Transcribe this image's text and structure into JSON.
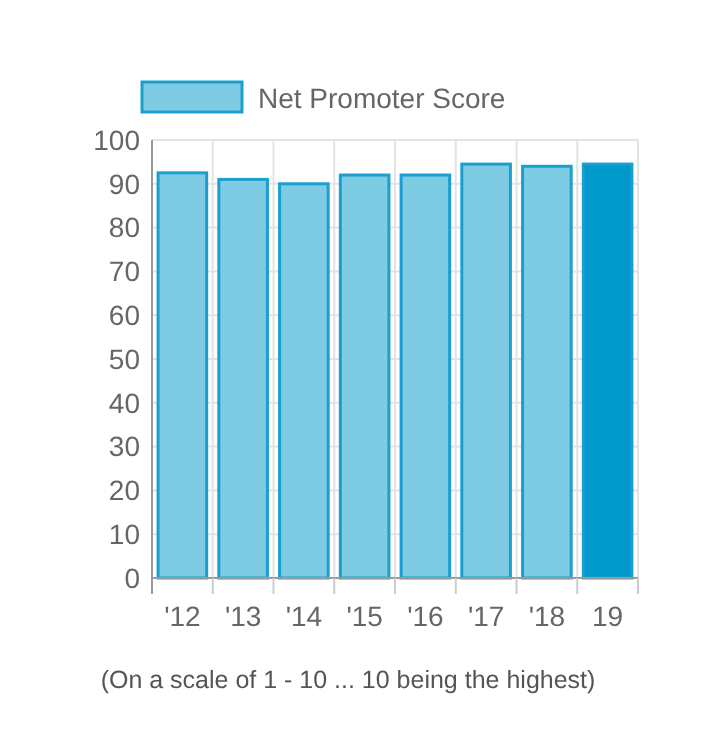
{
  "chart_data": {
    "type": "bar",
    "categories": [
      "'12",
      "'13",
      "'14",
      "'15",
      "'16",
      "'17",
      "'18",
      "19"
    ],
    "series": [
      {
        "name": "Net Promoter Score",
        "color": "#7ecbe4",
        "colors": [
          "#7ecbe4",
          "#7ecbe4",
          "#7ecbe4",
          "#7ecbe4",
          "#7ecbe4",
          "#7ecbe4",
          "#7ecbe4",
          "#0099cc"
        ],
        "values": [
          92.5,
          91,
          90,
          92,
          92,
          94.5,
          94,
          94.5
        ]
      }
    ],
    "ylim": [
      0,
      100
    ],
    "yticks": [
      0,
      10,
      20,
      30,
      40,
      50,
      60,
      70,
      80,
      90,
      100
    ],
    "grid": true,
    "legend": "top",
    "annotations": [
      "(On a scale of 1 - 10 ... 10 being the highest)"
    ]
  }
}
